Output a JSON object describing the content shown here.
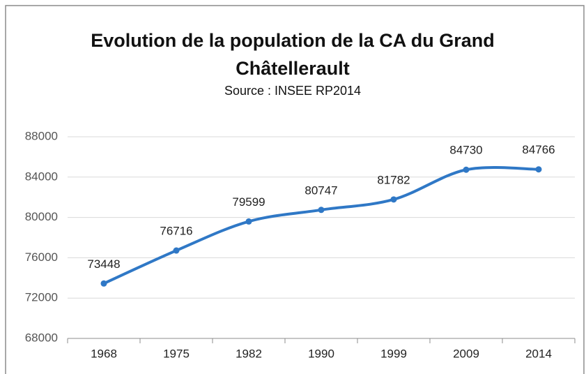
{
  "chart_data": {
    "type": "line",
    "title": "Evolution de la population de la CA du Grand Châtellerault",
    "subtitle": "Source : INSEE RP2014",
    "categories": [
      "1968",
      "1975",
      "1982",
      "1990",
      "1999",
      "2009",
      "2014"
    ],
    "series": [
      {
        "name": "Population",
        "color": "#2f78c6",
        "values": [
          73448,
          76716,
          79599,
          80747,
          81782,
          84730,
          84766
        ]
      }
    ],
    "ylim": [
      68000,
      88000
    ],
    "yticks": [
      68000,
      72000,
      76000,
      80000,
      84000,
      88000
    ],
    "grid": true,
    "smooth": true
  }
}
